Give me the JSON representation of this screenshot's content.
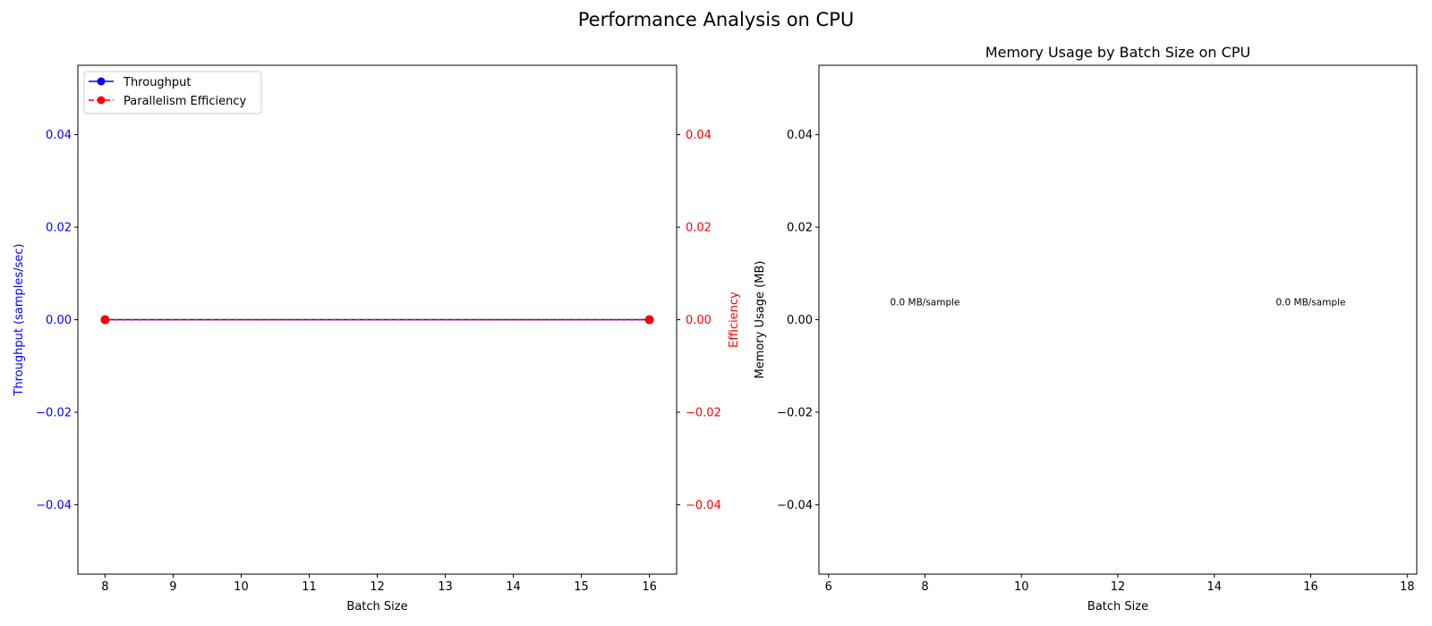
{
  "figure_title": "Performance Analysis on CPU",
  "colors": {
    "throughput": "#0000ff",
    "efficiency": "#ff0000",
    "axis": "#000000"
  },
  "chart_data": [
    {
      "type": "line",
      "title": "",
      "xlabel": "Batch Size",
      "ylabel": "Throughput (samples/sec)",
      "ylabel_right": "Efficiency",
      "x": [
        8,
        16
      ],
      "xlim": [
        7.6,
        16.4
      ],
      "xticks": [
        "8",
        "9",
        "10",
        "11",
        "12",
        "13",
        "14",
        "15",
        "16"
      ],
      "ylim": [
        -0.055,
        0.055
      ],
      "yticks": [
        "−0.04",
        "−0.02",
        "0.00",
        "0.02",
        "0.04"
      ],
      "ylim_right": [
        -0.055,
        0.055
      ],
      "yticks_right": [
        "−0.04",
        "−0.02",
        "0.00",
        "0.02",
        "0.04"
      ],
      "series": [
        {
          "name": "Throughput",
          "values": [
            0,
            0
          ],
          "axis": "left",
          "color": "#0000ff",
          "linestyle": "solid",
          "marker": "circle"
        },
        {
          "name": "Parallelism Efficiency",
          "values": [
            0,
            0
          ],
          "axis": "right",
          "color": "#ff0000",
          "linestyle": "dashed",
          "marker": "circle"
        }
      ],
      "legend": "top-left",
      "grid": false
    },
    {
      "type": "bar",
      "title": "Memory Usage by Batch Size on CPU",
      "xlabel": "Batch Size",
      "ylabel": "Memory Usage (MB)",
      "x": [
        8,
        16
      ],
      "values": [
        0,
        0
      ],
      "xlim": [
        5.8,
        18.2
      ],
      "xticks": [
        "6",
        "8",
        "10",
        "12",
        "14",
        "16",
        "18"
      ],
      "ylim": [
        -0.055,
        0.055
      ],
      "yticks": [
        "−0.04",
        "−0.02",
        "0.00",
        "0.02",
        "0.04"
      ],
      "annotations": [
        "0.0 MB/sample",
        "0.0 MB/sample"
      ],
      "grid": false
    }
  ]
}
